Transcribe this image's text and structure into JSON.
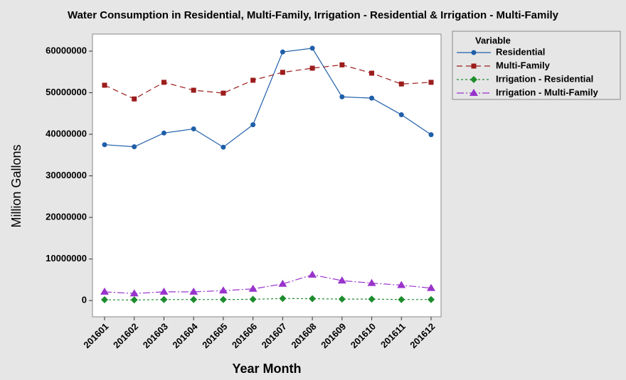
{
  "chart_data": {
    "type": "line",
    "title": "Water Consumption in Residential, Multi-Family, Irrigation - Residential & Irrigation - Multi-Family",
    "x_label": "Year Month",
    "y_label": "Million Gallons",
    "legend_title": "Variable",
    "legend": "outside-right",
    "categories": [
      "201601",
      "201602",
      "201603",
      "201604",
      "201605",
      "201606",
      "201607",
      "201608",
      "201609",
      "201610",
      "201611",
      "201612"
    ],
    "ylim": [
      -3900000,
      64100000
    ],
    "yticks": [
      0,
      10000000,
      20000000,
      30000000,
      40000000,
      50000000,
      60000000
    ],
    "series": [
      {
        "name": "Residential",
        "color": "#1f5fa8",
        "marker": "circle",
        "dash": "",
        "values": [
          37500000,
          37000000,
          40300000,
          41300000,
          36900000,
          42300000,
          59800000,
          60700000,
          49000000,
          48700000,
          44700000,
          39900000
        ]
      },
      {
        "name": "Multi-Family",
        "color": "#9b1c1c",
        "marker": "square",
        "dash": "8 5",
        "values": [
          51800000,
          48500000,
          52500000,
          50600000,
          49900000,
          53000000,
          54900000,
          55900000,
          56700000,
          54700000,
          52100000,
          52500000
        ]
      },
      {
        "name": "Irrigation - Residential",
        "color": "#1e8c2e",
        "marker": "diamond",
        "dash": "3 3",
        "values": [
          200000,
          150000,
          250000,
          250000,
          250000,
          300000,
          500000,
          450000,
          350000,
          350000,
          250000,
          250000
        ]
      },
      {
        "name": "Irrigation - Multi-Family",
        "color": "#9933cc",
        "marker": "triangle",
        "dash": "10 3 2 3",
        "values": [
          2100000,
          1700000,
          2100000,
          2100000,
          2400000,
          2800000,
          4000000,
          6200000,
          4800000,
          4200000,
          3700000,
          3000000
        ]
      }
    ]
  }
}
